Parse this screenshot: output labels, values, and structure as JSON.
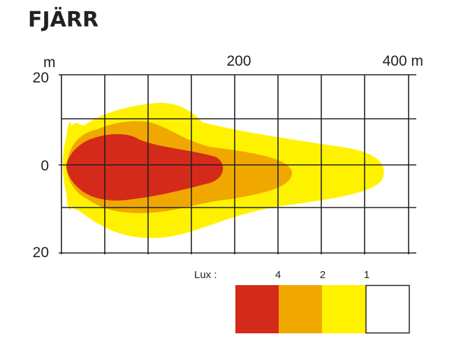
{
  "title": "FJÄRR",
  "y_axis": {
    "unit": "m",
    "labels": [
      "20",
      "0",
      "20"
    ]
  },
  "x_axis": {
    "labels": [
      "200",
      "400 m"
    ]
  },
  "legend": {
    "label": "Lux :",
    "levels": [
      "4",
      "2",
      "1"
    ]
  }
}
